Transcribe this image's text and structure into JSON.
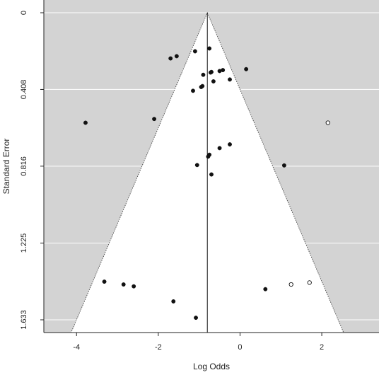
{
  "chart_data": {
    "type": "scatter",
    "subtype": "funnel-plot",
    "title": "",
    "xlabel": "Log Odds",
    "ylabel": "Standard Error",
    "xlim": [
      -4.8,
      3.4
    ],
    "ylim": [
      0,
      1.633
    ],
    "y_reversed": true,
    "grid": true,
    "background_color": "#d3d3d3",
    "funnel_color": "#ffffff",
    "xticks": [
      -4,
      -2,
      0,
      2
    ],
    "xtick_labels": [
      "-4",
      "-2",
      "0",
      "2"
    ],
    "yticks": [
      0,
      0.408,
      0.816,
      1.225,
      1.633
    ],
    "ytick_labels": [
      "0",
      "0.408",
      "0.816",
      "1.225",
      "1.633"
    ],
    "pooled_estimate": -0.8,
    "funnel_multiplier": 1.96,
    "series": [
      {
        "filled": true,
        "x": [
          -1.7,
          -1.55,
          -1.1,
          -0.75,
          -0.9,
          -0.7,
          -0.72,
          -0.5,
          -0.42,
          0.15,
          -0.95,
          -0.65,
          -0.25,
          -0.92,
          -1.15,
          -2.1,
          -3.78,
          -0.25,
          -0.5,
          -0.75,
          -0.78,
          -1.05,
          1.08,
          -0.7,
          -3.32,
          -2.85,
          -2.6,
          0.62,
          -1.63,
          -1.08
        ],
        "y": [
          0.243,
          0.231,
          0.205,
          0.19,
          0.33,
          0.315,
          0.318,
          0.31,
          0.305,
          0.3,
          0.395,
          0.365,
          0.355,
          0.39,
          0.415,
          0.565,
          0.585,
          0.7,
          0.72,
          0.755,
          0.765,
          0.81,
          0.812,
          0.86,
          1.43,
          1.445,
          1.455,
          1.47,
          1.535,
          1.622
        ]
      },
      {
        "filled": false,
        "x": [
          2.15,
          1.25,
          1.7
        ],
        "y": [
          0.585,
          1.445,
          1.435
        ]
      }
    ]
  }
}
